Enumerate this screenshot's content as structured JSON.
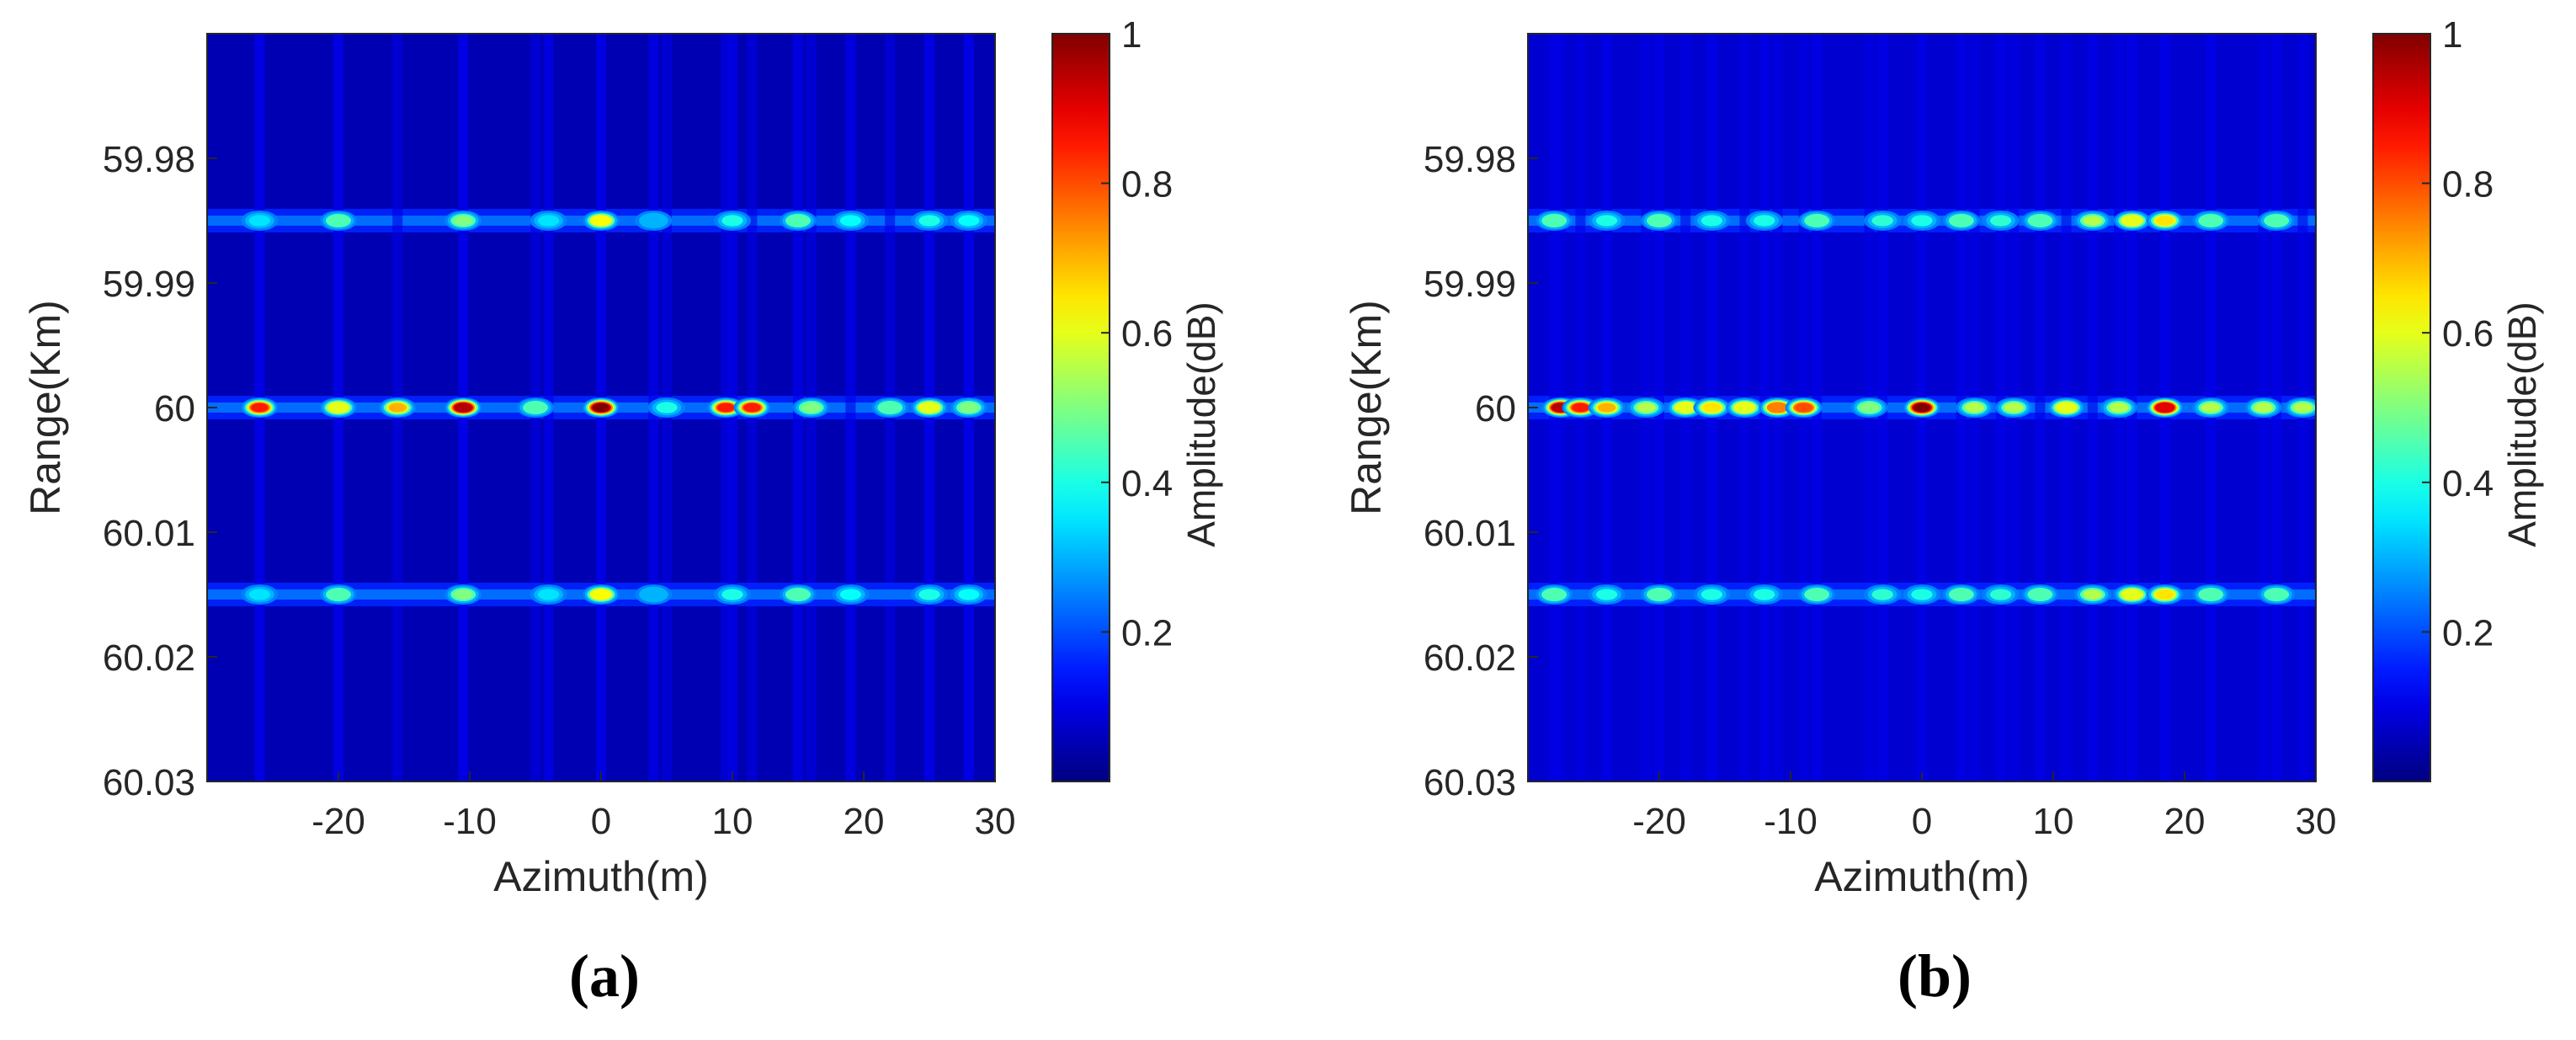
{
  "chart_data": [
    {
      "type": "heatmap",
      "panel_label": "(a)",
      "xlabel": "Azimuth(m)",
      "ylabel": "Range(Km)",
      "colorbar_label": "Amplitude(dB)",
      "colormap": "jet",
      "xlim": [
        -30,
        30
      ],
      "ylim": [
        59.97,
        60.03
      ],
      "y_reversed": true,
      "xticks": [
        -20,
        -10,
        0,
        10,
        20,
        30
      ],
      "xtick_labels": [
        "-20",
        "-10",
        "0",
        "10",
        "20",
        "30"
      ],
      "yticks": [
        59.98,
        59.99,
        60,
        60.01,
        60.02,
        60.03
      ],
      "ytick_labels": [
        "59.98",
        "59.99",
        "60",
        "60.01",
        "60.02",
        "60.03"
      ],
      "colorbar_ticks": [
        0.2,
        0.4,
        0.6,
        0.8,
        1
      ],
      "colorbar_tick_labels": [
        "0.2",
        "0.4",
        "0.6",
        "0.8",
        "1"
      ],
      "clim": [
        0,
        1
      ],
      "background_value": 0.05,
      "bands": [
        {
          "range_km": 59.985,
          "peaks": [
            {
              "az": -26,
              "amp": 0.35
            },
            {
              "az": -20,
              "amp": 0.45
            },
            {
              "az": -10.5,
              "amp": 0.5
            },
            {
              "az": -4,
              "amp": 0.35
            },
            {
              "az": 0,
              "amp": 0.62
            },
            {
              "az": 4,
              "amp": 0.3
            },
            {
              "az": 10,
              "amp": 0.4
            },
            {
              "az": 15,
              "amp": 0.45
            },
            {
              "az": 19,
              "amp": 0.38
            },
            {
              "az": 25,
              "amp": 0.4
            },
            {
              "az": 28,
              "amp": 0.38
            }
          ]
        },
        {
          "range_km": 60.0,
          "peaks": [
            {
              "az": -26,
              "amp": 0.85
            },
            {
              "az": -20,
              "amp": 0.6
            },
            {
              "az": -15.5,
              "amp": 0.7
            },
            {
              "az": -10.5,
              "amp": 0.95
            },
            {
              "az": -5,
              "amp": 0.45
            },
            {
              "az": 0,
              "amp": 1.0
            },
            {
              "az": 5,
              "amp": 0.4
            },
            {
              "az": 9.5,
              "amp": 0.85
            },
            {
              "az": 11.5,
              "amp": 0.85
            },
            {
              "az": 16,
              "amp": 0.5
            },
            {
              "az": 22,
              "amp": 0.45
            },
            {
              "az": 25,
              "amp": 0.6
            },
            {
              "az": 28,
              "amp": 0.5
            }
          ]
        },
        {
          "range_km": 60.015,
          "peaks": [
            {
              "az": -26,
              "amp": 0.35
            },
            {
              "az": -20,
              "amp": 0.45
            },
            {
              "az": -10.5,
              "amp": 0.5
            },
            {
              "az": -4,
              "amp": 0.35
            },
            {
              "az": 0,
              "amp": 0.62
            },
            {
              "az": 4,
              "amp": 0.3
            },
            {
              "az": 10,
              "amp": 0.4
            },
            {
              "az": 15,
              "amp": 0.45
            },
            {
              "az": 19,
              "amp": 0.38
            },
            {
              "az": 25,
              "amp": 0.4
            },
            {
              "az": 28,
              "amp": 0.38
            }
          ]
        }
      ]
    },
    {
      "type": "heatmap",
      "panel_label": "(b)",
      "xlabel": "Azimuth(m)",
      "ylabel": "Range(Km)",
      "colorbar_label": "Amplitude(dB)",
      "colormap": "jet",
      "xlim": [
        -30,
        30
      ],
      "ylim": [
        59.97,
        60.03
      ],
      "y_reversed": true,
      "xticks": [
        -20,
        -10,
        0,
        10,
        20,
        30
      ],
      "xtick_labels": [
        "-20",
        "-10",
        "0",
        "10",
        "20",
        "30"
      ],
      "yticks": [
        59.98,
        59.99,
        60,
        60.01,
        60.02,
        60.03
      ],
      "ytick_labels": [
        "59.98",
        "59.99",
        "60",
        "60.01",
        "60.02",
        "60.03"
      ],
      "colorbar_ticks": [
        0.2,
        0.4,
        0.6,
        0.8,
        1
      ],
      "colorbar_tick_labels": [
        "0.2",
        "0.4",
        "0.6",
        "0.8",
        "1"
      ],
      "clim": [
        0,
        1
      ],
      "background_value": 0.08,
      "bands": [
        {
          "range_km": 59.985,
          "peaks": [
            {
              "az": -28,
              "amp": 0.45
            },
            {
              "az": -24,
              "amp": 0.4
            },
            {
              "az": -20,
              "amp": 0.45
            },
            {
              "az": -16,
              "amp": 0.4
            },
            {
              "az": -12,
              "amp": 0.4
            },
            {
              "az": -8,
              "amp": 0.45
            },
            {
              "az": -3,
              "amp": 0.42
            },
            {
              "az": 0,
              "amp": 0.4
            },
            {
              "az": 3,
              "amp": 0.45
            },
            {
              "az": 6,
              "amp": 0.42
            },
            {
              "az": 9,
              "amp": 0.45
            },
            {
              "az": 13,
              "amp": 0.55
            },
            {
              "az": 16,
              "amp": 0.6
            },
            {
              "az": 18.5,
              "amp": 0.65
            },
            {
              "az": 22,
              "amp": 0.45
            },
            {
              "az": 27,
              "amp": 0.45
            }
          ]
        },
        {
          "range_km": 60.0,
          "peaks": [
            {
              "az": -27.5,
              "amp": 0.95
            },
            {
              "az": -26,
              "amp": 0.85
            },
            {
              "az": -24,
              "amp": 0.7
            },
            {
              "az": -21,
              "amp": 0.55
            },
            {
              "az": -18,
              "amp": 0.6
            },
            {
              "az": -16,
              "amp": 0.65
            },
            {
              "az": -13.5,
              "amp": 0.6
            },
            {
              "az": -11,
              "amp": 0.75
            },
            {
              "az": -9,
              "amp": 0.8
            },
            {
              "az": -4,
              "amp": 0.5
            },
            {
              "az": 0,
              "amp": 1.0
            },
            {
              "az": 4,
              "amp": 0.55
            },
            {
              "az": 7,
              "amp": 0.55
            },
            {
              "az": 11,
              "amp": 0.6
            },
            {
              "az": 15,
              "amp": 0.55
            },
            {
              "az": 18.5,
              "amp": 0.9
            },
            {
              "az": 22,
              "amp": 0.55
            },
            {
              "az": 26,
              "amp": 0.55
            },
            {
              "az": 29,
              "amp": 0.55
            }
          ]
        },
        {
          "range_km": 60.015,
          "peaks": [
            {
              "az": -28,
              "amp": 0.45
            },
            {
              "az": -24,
              "amp": 0.4
            },
            {
              "az": -20,
              "amp": 0.45
            },
            {
              "az": -16,
              "amp": 0.4
            },
            {
              "az": -12,
              "amp": 0.4
            },
            {
              "az": -8,
              "amp": 0.45
            },
            {
              "az": -3,
              "amp": 0.42
            },
            {
              "az": 0,
              "amp": 0.4
            },
            {
              "az": 3,
              "amp": 0.45
            },
            {
              "az": 6,
              "amp": 0.42
            },
            {
              "az": 9,
              "amp": 0.45
            },
            {
              "az": 13,
              "amp": 0.55
            },
            {
              "az": 16,
              "amp": 0.6
            },
            {
              "az": 18.5,
              "amp": 0.65
            },
            {
              "az": 22,
              "amp": 0.45
            },
            {
              "az": 27,
              "amp": 0.45
            }
          ]
        }
      ]
    }
  ]
}
